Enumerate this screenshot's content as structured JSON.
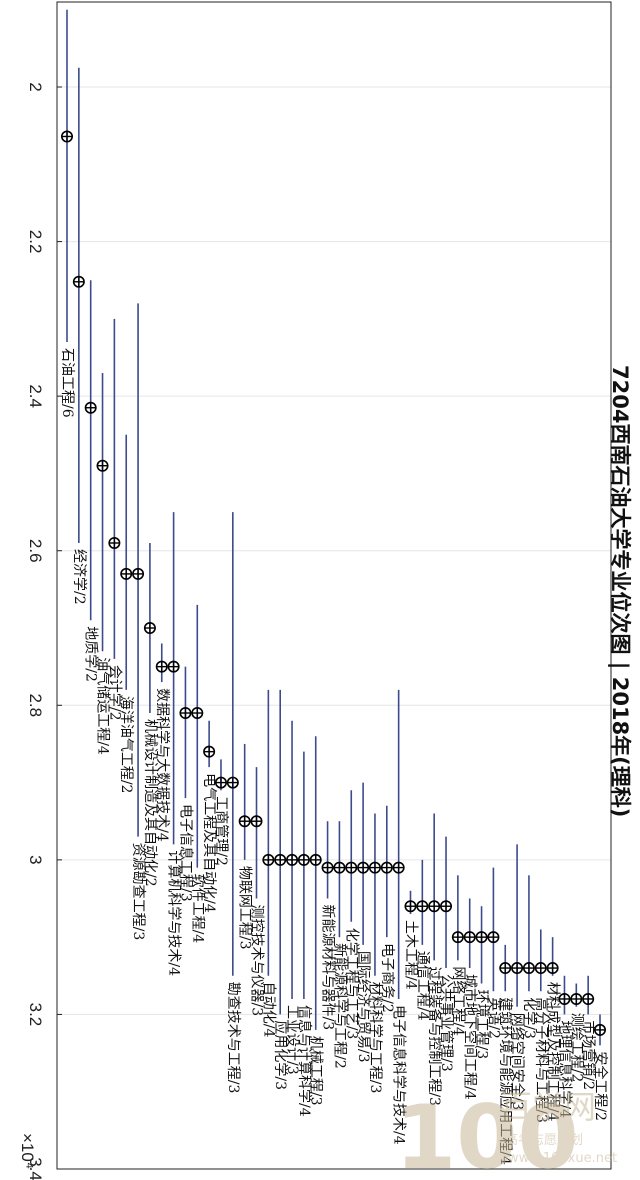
{
  "chart_data": {
    "type": "scatter",
    "title": "7204西南石油大学专业位次图 | 2018年(理科)",
    "scale_note": "×10⁴",
    "ylim": [
      1.89,
      3.4
    ],
    "yticks": [
      2,
      2.2,
      2.4,
      2.6,
      2.8,
      3,
      3.2,
      3.4
    ],
    "grid": true,
    "categories": [
      "石油工程/6",
      "经济学/2",
      "地质学/2",
      "油气储运工程/4",
      "会计学/2",
      "海洋油气工程/2",
      "资源勘查工程/3",
      "机械设计制造及其自动化/2",
      "数据科学与大数据技术/4",
      "计算机科学与技术/4",
      "电子信息工程/3",
      "软件工程/4",
      "电气工程及其自动化/4",
      "工商管理/2",
      "勘查技术与工程/3",
      "物联网工程/3",
      "测控技术与仪器/3",
      "自动化/4",
      "应用化学/3",
      "工业设计/3",
      "信息与计算科学/4",
      "机械工程/3",
      "新能源材料与器件/3",
      "新能源科学与工程/2",
      "化学工程与工艺/3",
      "国际经济与贸易/3",
      "材料科学与工程/3",
      "电子商务/2",
      "电子信息科学与技术/4",
      "土木工程/4",
      "通信工程/4",
      "过程装备与控制工程/3",
      "公共事业管理/3",
      "网络工程/4",
      "城市地下空间工程/4",
      "环境工程/3",
      "英语/2",
      "建筑环境与能源应用工程/4",
      "网络空间安全/3",
      "化学/3",
      "高分子材料与工程/3",
      "材料成型及控制工程/4",
      "地理信息科学/4",
      "测绘工程/2",
      "市场营销/2",
      "安全工程/2"
    ],
    "series": [
      {
        "values": [
          [
            2.064,
            1.9,
            2.33
          ],
          [
            2.252,
            1.975,
            2.59
          ],
          [
            2.415,
            2.25,
            2.69
          ],
          [
            2.49,
            2.37,
            2.73
          ],
          [
            2.59,
            2.3,
            2.74
          ],
          [
            2.63,
            2.45,
            2.78
          ],
          [
            2.63,
            2.28,
            2.97
          ],
          [
            2.7,
            2.59,
            2.81
          ],
          [
            2.75,
            2.72,
            2.77
          ],
          [
            2.75,
            2.55,
            2.98
          ],
          [
            2.81,
            2.75,
            2.92
          ],
          [
            2.81,
            2.67,
            3.01
          ],
          [
            2.86,
            2.82,
            2.88
          ],
          [
            2.9,
            2.87,
            2.91
          ],
          [
            2.9,
            2.55,
            3.15
          ],
          [
            2.95,
            2.85,
            3.0
          ],
          [
            2.95,
            2.88,
            3.05
          ],
          [
            3.0,
            2.78,
            3.15
          ],
          [
            3.0,
            2.78,
            3.2
          ],
          [
            3.0,
            2.82,
            3.18
          ],
          [
            3.0,
            2.86,
            3.18
          ],
          [
            3.0,
            2.84,
            3.22
          ],
          [
            3.01,
            2.95,
            3.05
          ],
          [
            3.01,
            2.95,
            3.1
          ],
          [
            3.01,
            2.91,
            3.08
          ],
          [
            3.01,
            2.9,
            3.11
          ],
          [
            3.01,
            2.94,
            3.15
          ],
          [
            3.01,
            2.93,
            3.1
          ],
          [
            3.01,
            2.78,
            3.18
          ],
          [
            3.06,
            3.04,
            3.07
          ],
          [
            3.06,
            3.0,
            3.11
          ],
          [
            3.06,
            2.94,
            3.13
          ],
          [
            3.06,
            2.97,
            3.14
          ],
          [
            3.1,
            3.02,
            3.13
          ],
          [
            3.1,
            3.05,
            3.14
          ],
          [
            3.1,
            3.06,
            3.16
          ],
          [
            3.1,
            3.01,
            3.17
          ],
          [
            3.14,
            3.11,
            3.17
          ],
          [
            3.14,
            2.98,
            3.19
          ],
          [
            3.14,
            3.02,
            3.17
          ],
          [
            3.14,
            3.09,
            3.17
          ],
          [
            3.14,
            3.1,
            3.15
          ],
          [
            3.18,
            3.15,
            3.2
          ],
          [
            3.18,
            3.16,
            3.19
          ],
          [
            3.18,
            3.15,
            3.2
          ],
          [
            3.22,
            3.2,
            3.24
          ]
        ]
      }
    ]
  },
  "watermark": {
    "logo_text": "100",
    "brand_cn": "百学网",
    "sub_cn": "高考志愿规划",
    "url": "www.100xue.net"
  }
}
